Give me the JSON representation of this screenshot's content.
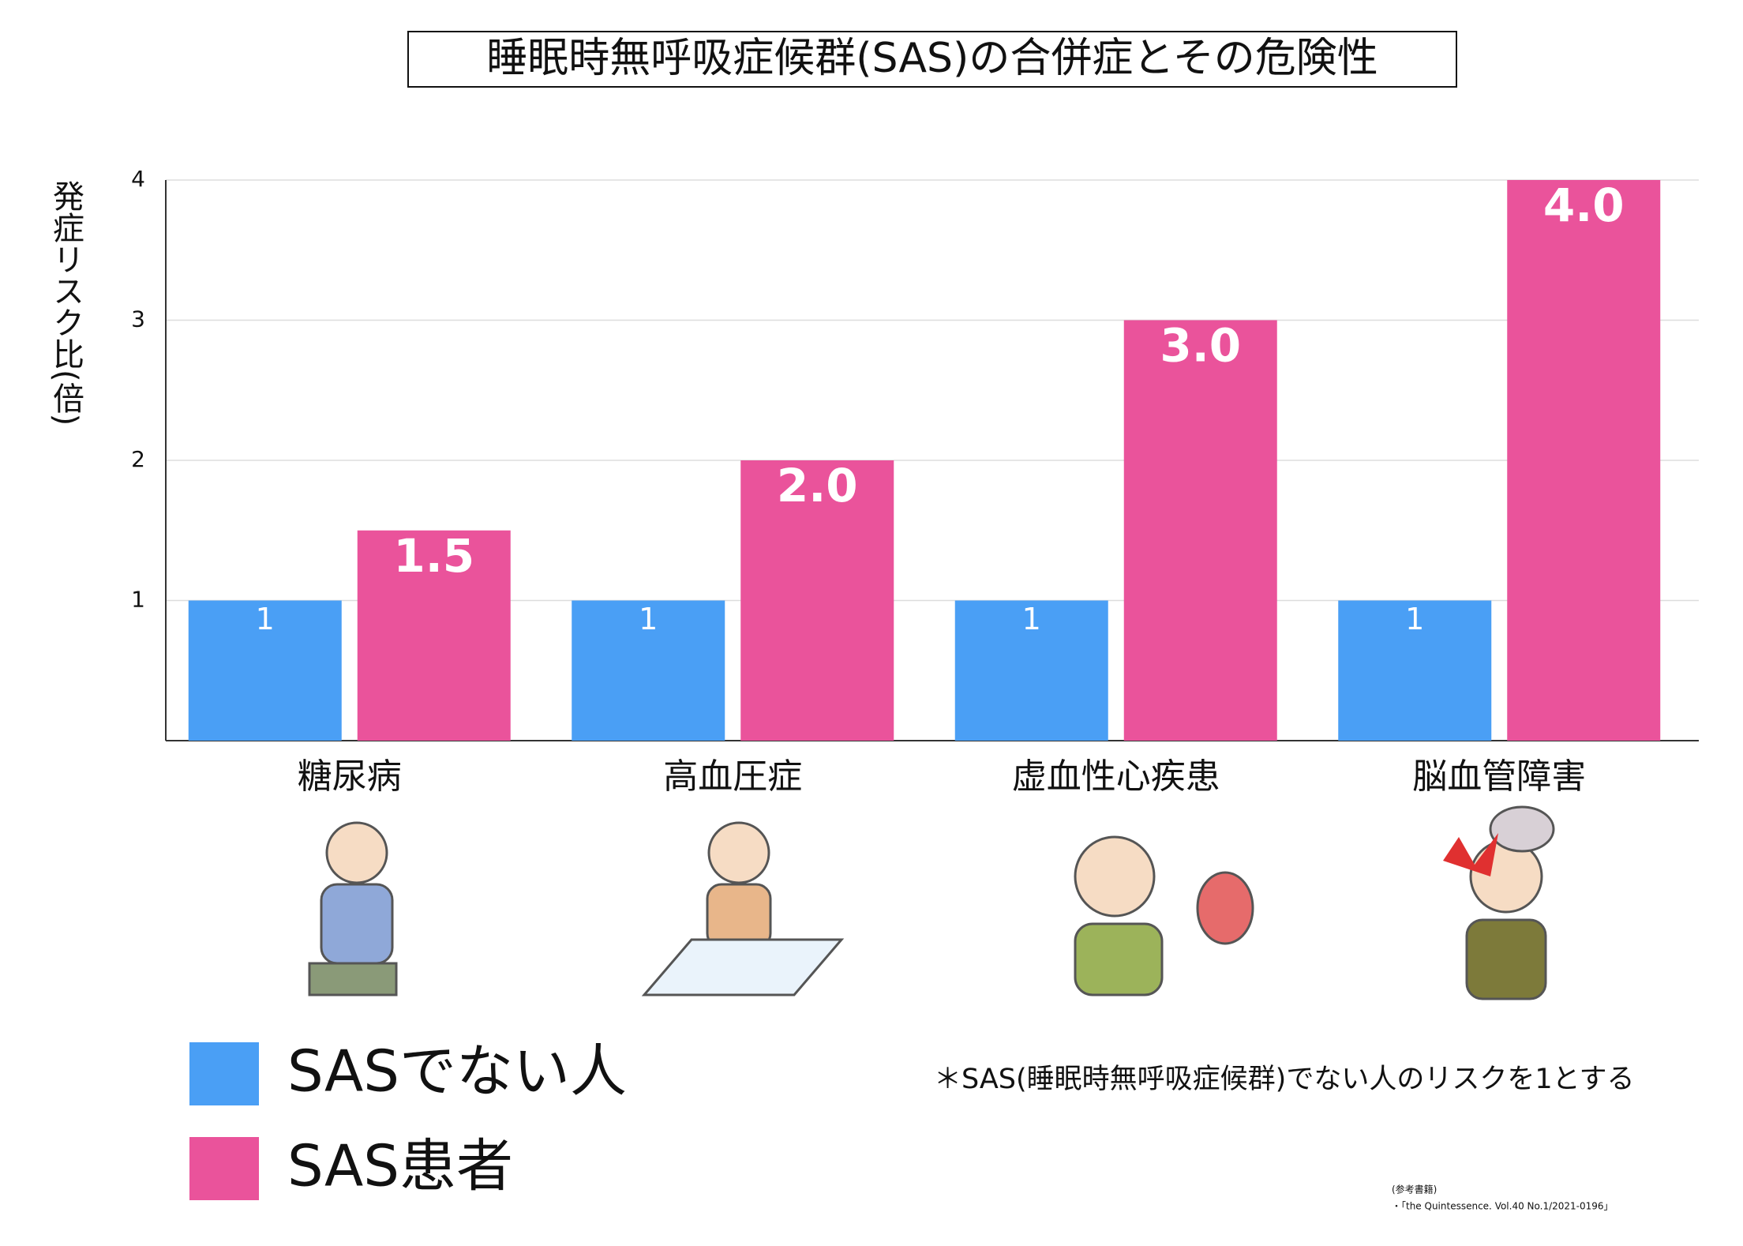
{
  "chart_data": {
    "type": "bar",
    "title": "睡眠時無呼吸症候群(SAS)の合併症とその危険性",
    "y_label": "発症リスク比(倍)",
    "categories": [
      "糖尿病",
      "高血圧症",
      "虚血性心疾患",
      "脳血管障害"
    ],
    "series": [
      {
        "name": "SASでない人",
        "color": "#4a9ff5",
        "values": [
          1,
          1,
          1,
          1
        ]
      },
      {
        "name": "SAS患者",
        "color": "#ea539b",
        "values": [
          1.5,
          2,
          3,
          4
        ],
        "value_labels": [
          "1.5",
          "2.0",
          "3.0",
          "4.0"
        ]
      }
    ],
    "ylim": [
      0,
      4
    ],
    "yticks": [
      1,
      2,
      3,
      4
    ],
    "grid": true,
    "note": "＊SAS(睡眠時無呼吸症候群)でない人のリスクを1とする",
    "sources": [
      "(参考書籍)",
      "・「the Quintessence. Vol.40 No.1/2021-0196」"
    ]
  }
}
